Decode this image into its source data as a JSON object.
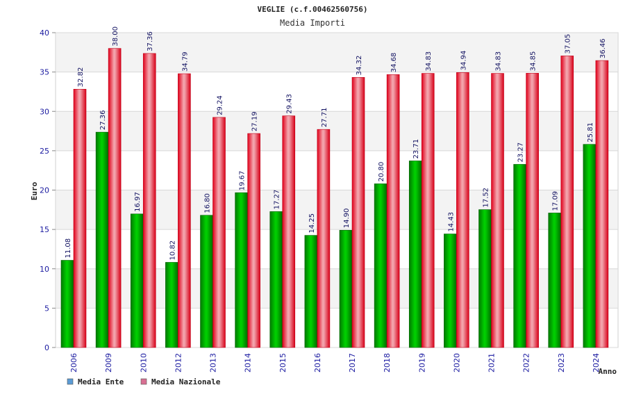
{
  "chart_data": {
    "type": "bar",
    "title": "VEGLIE (c.f.00462560756)",
    "subtitle": "Media Importi",
    "ylabel": "Euro",
    "xlabel": "Anno",
    "ylim": [
      0,
      40
    ],
    "yticks": [
      "0",
      "5",
      "10",
      "15",
      "20",
      "25",
      "30",
      "35",
      "40"
    ],
    "grid": true,
    "legend_position": "bottom-left",
    "categories": [
      "2006",
      "2009",
      "2010",
      "2012",
      "2013",
      "2014",
      "2015",
      "2016",
      "2017",
      "2018",
      "2019",
      "2020",
      "2021",
      "2022",
      "2023",
      "2024"
    ],
    "series": [
      {
        "name": "Media Ente",
        "color": "#00b000",
        "legend_color": "#5b9bd5",
        "values": [
          11.08,
          27.36,
          16.97,
          10.82,
          16.8,
          19.67,
          17.27,
          14.25,
          14.9,
          20.8,
          23.71,
          14.43,
          17.52,
          23.27,
          17.09,
          25.81
        ],
        "labels": [
          "11.08",
          "27.36",
          "16.97",
          "10.82",
          "16.80",
          "19.67",
          "17.27",
          "14.25",
          "14.90",
          "20.80",
          "23.71",
          "14.43",
          "17.52",
          "23.27",
          "17.09",
          "25.81"
        ]
      },
      {
        "name": "Media Nazionale",
        "color": "#e8001c",
        "legend_color": "#d87093",
        "values": [
          32.82,
          38.0,
          37.36,
          34.79,
          29.24,
          27.19,
          29.43,
          27.71,
          34.32,
          34.68,
          34.83,
          34.94,
          34.83,
          34.85,
          37.05,
          36.46
        ],
        "labels": [
          "32.82",
          "38.00",
          "37.36",
          "34.79",
          "29.24",
          "27.19",
          "29.43",
          "27.71",
          "34.32",
          "34.68",
          "34.83",
          "34.94",
          "34.83",
          "34.85",
          "37.05",
          "36.46"
        ]
      }
    ]
  }
}
